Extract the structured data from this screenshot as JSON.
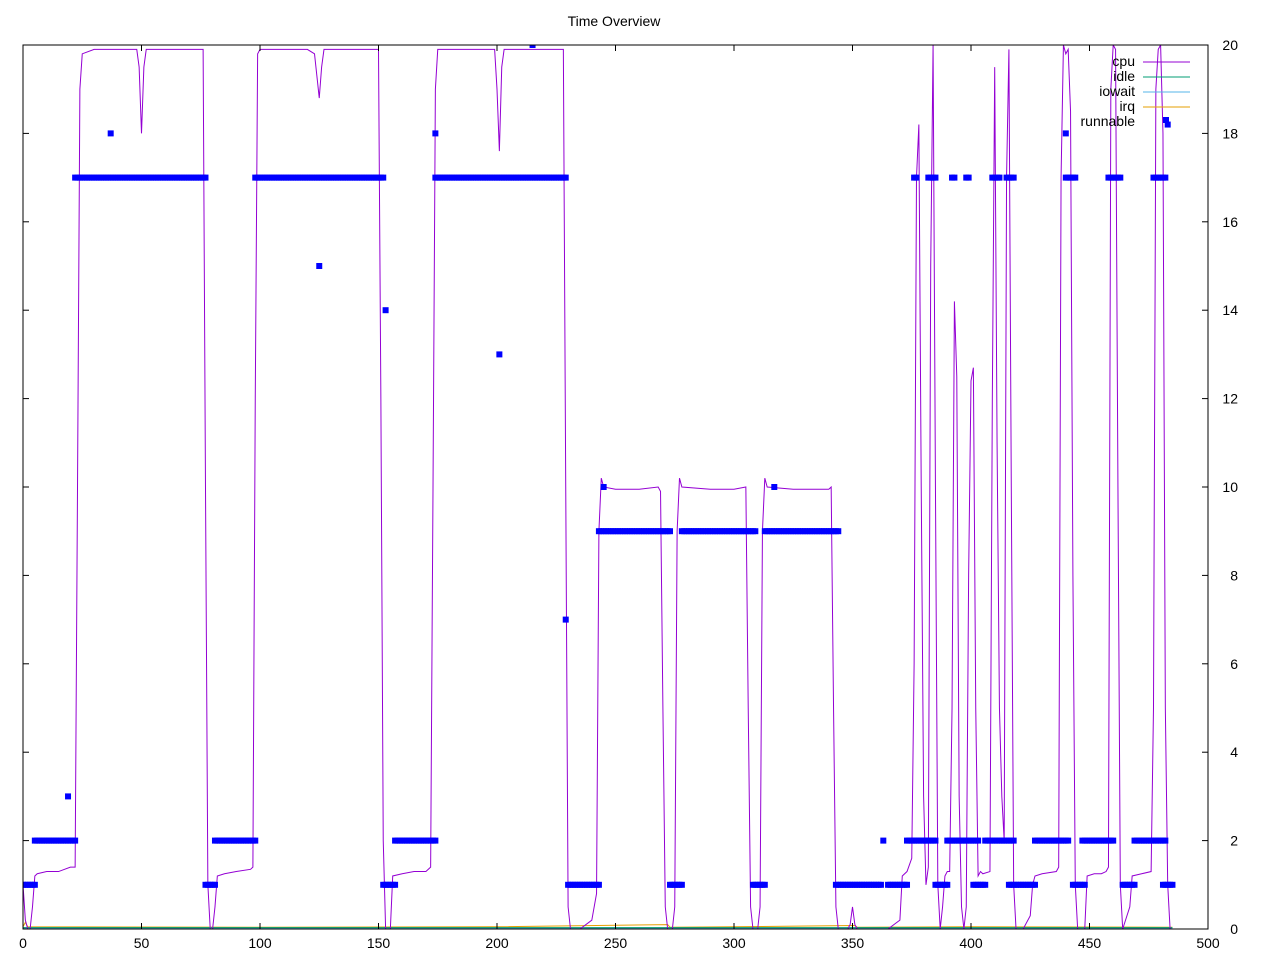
{
  "chart_data": {
    "type": "line",
    "title": "Time Overview",
    "xlabel": "",
    "ylabel": "",
    "xlim": [
      0,
      500
    ],
    "ylim": [
      0,
      20
    ],
    "x_ticks": [
      0,
      50,
      100,
      150,
      200,
      250,
      300,
      350,
      400,
      450,
      500
    ],
    "y_ticks": [
      0,
      2,
      4,
      6,
      8,
      10,
      12,
      14,
      16,
      18,
      20
    ],
    "grid": false,
    "legend_position": "top-right",
    "legend": [
      {
        "name": "cpu",
        "color": "#9400d3",
        "style": "line"
      },
      {
        "name": "idle",
        "color": "#009e73",
        "style": "line"
      },
      {
        "name": "iowait",
        "color": "#56b4e9",
        "style": "line"
      },
      {
        "name": "irq",
        "color": "#e69f00",
        "style": "line"
      },
      {
        "name": "runnable",
        "color": "#0000ff",
        "style": "points"
      }
    ],
    "series": [
      {
        "name": "cpu",
        "color": "#9400d3",
        "points": [
          [
            0,
            1.0
          ],
          [
            1,
            0.2
          ],
          [
            2,
            0
          ],
          [
            3,
            0
          ],
          [
            4,
            0.5
          ],
          [
            5,
            1.2
          ],
          [
            6,
            1.25
          ],
          [
            10,
            1.3
          ],
          [
            15,
            1.3
          ],
          [
            20,
            1.4
          ],
          [
            22,
            1.4
          ],
          [
            23,
            10
          ],
          [
            24,
            19
          ],
          [
            25,
            19.8
          ],
          [
            30,
            19.9
          ],
          [
            40,
            19.9
          ],
          [
            48,
            19.9
          ],
          [
            49,
            19.5
          ],
          [
            50,
            18
          ],
          [
            51,
            19.5
          ],
          [
            52,
            19.9
          ],
          [
            60,
            19.9
          ],
          [
            70,
            19.9
          ],
          [
            76,
            19.9
          ],
          [
            77,
            10
          ],
          [
            78,
            1
          ],
          [
            79,
            0
          ],
          [
            80,
            0
          ],
          [
            81,
            0.5
          ],
          [
            82,
            1.2
          ],
          [
            85,
            1.25
          ],
          [
            90,
            1.3
          ],
          [
            96,
            1.35
          ],
          [
            97,
            1.4
          ],
          [
            98,
            12
          ],
          [
            99,
            19.8
          ],
          [
            100,
            19.9
          ],
          [
            110,
            19.9
          ],
          [
            120,
            19.9
          ],
          [
            123,
            19.8
          ],
          [
            124,
            19.3
          ],
          [
            125,
            18.8
          ],
          [
            126,
            19.5
          ],
          [
            127,
            19.9
          ],
          [
            140,
            19.9
          ],
          [
            150,
            19.9
          ],
          [
            151,
            12
          ],
          [
            152,
            2
          ],
          [
            153,
            0
          ],
          [
            155,
            0
          ],
          [
            156,
            1.2
          ],
          [
            160,
            1.25
          ],
          [
            165,
            1.3
          ],
          [
            170,
            1.3
          ],
          [
            172,
            1.4
          ],
          [
            173,
            10
          ],
          [
            174,
            19
          ],
          [
            175,
            19.9
          ],
          [
            190,
            19.9
          ],
          [
            199,
            19.9
          ],
          [
            200,
            19
          ],
          [
            201,
            17.6
          ],
          [
            202,
            19.5
          ],
          [
            203,
            19.9
          ],
          [
            215,
            19.9
          ],
          [
            228,
            19.9
          ],
          [
            229,
            10
          ],
          [
            230,
            0.5
          ],
          [
            231,
            0
          ],
          [
            235,
            0
          ],
          [
            240,
            0.2
          ],
          [
            242,
            0.8
          ],
          [
            243,
            9
          ],
          [
            244,
            10.2
          ],
          [
            245,
            10
          ],
          [
            250,
            9.95
          ],
          [
            260,
            9.95
          ],
          [
            268,
            10
          ],
          [
            269,
            9.9
          ],
          [
            270,
            5
          ],
          [
            271,
            0.5
          ],
          [
            272,
            0
          ],
          [
            274,
            0
          ],
          [
            275,
            0.5
          ],
          [
            276,
            9
          ],
          [
            277,
            10.2
          ],
          [
            278,
            10
          ],
          [
            290,
            9.95
          ],
          [
            300,
            9.95
          ],
          [
            305,
            10
          ],
          [
            306,
            5
          ],
          [
            307,
            0.5
          ],
          [
            308,
            0
          ],
          [
            310,
            0
          ],
          [
            311,
            0.5
          ],
          [
            312,
            9
          ],
          [
            313,
            10.2
          ],
          [
            314,
            10
          ],
          [
            325,
            9.95
          ],
          [
            340,
            9.95
          ],
          [
            341,
            10
          ],
          [
            342,
            5
          ],
          [
            343,
            0.5
          ],
          [
            344,
            0
          ],
          [
            348,
            0
          ],
          [
            349,
            0.1
          ],
          [
            350,
            0.5
          ],
          [
            351,
            0.1
          ],
          [
            352,
            0
          ],
          [
            360,
            0
          ],
          [
            365,
            0
          ],
          [
            370,
            0.2
          ],
          [
            371,
            1.2
          ],
          [
            373,
            1.3
          ],
          [
            375,
            1.6
          ],
          [
            376,
            6
          ],
          [
            377,
            17
          ],
          [
            378,
            18.2
          ],
          [
            379,
            10
          ],
          [
            380,
            3
          ],
          [
            381,
            1.0
          ],
          [
            382,
            1.4
          ],
          [
            383,
            15
          ],
          [
            384,
            20
          ],
          [
            385,
            10
          ],
          [
            386,
            1
          ],
          [
            387,
            0
          ],
          [
            388,
            0.5
          ],
          [
            389,
            1.2
          ],
          [
            390,
            1.3
          ],
          [
            391,
            1.3
          ],
          [
            392,
            5
          ],
          [
            393,
            14.2
          ],
          [
            394,
            12.5
          ],
          [
            395,
            3
          ],
          [
            396,
            0.5
          ],
          [
            397,
            0
          ],
          [
            398,
            0.5
          ],
          [
            399,
            8
          ],
          [
            400,
            12.4
          ],
          [
            401,
            12.7
          ],
          [
            402,
            5
          ],
          [
            403,
            1.2
          ],
          [
            404,
            1.3
          ],
          [
            405,
            1.25
          ],
          [
            408,
            1.3
          ],
          [
            409,
            12
          ],
          [
            410,
            19.5
          ],
          [
            411,
            11
          ],
          [
            412,
            5
          ],
          [
            413,
            3
          ],
          [
            414,
            2
          ],
          [
            415,
            17
          ],
          [
            416,
            19.9
          ],
          [
            417,
            10
          ],
          [
            418,
            1
          ],
          [
            419,
            0
          ],
          [
            422,
            0
          ],
          [
            425,
            0.3
          ],
          [
            426,
            1
          ],
          [
            427,
            1.2
          ],
          [
            430,
            1.25
          ],
          [
            436,
            1.3
          ],
          [
            437,
            1.4
          ],
          [
            438,
            17
          ],
          [
            439,
            20
          ],
          [
            440,
            19.8
          ],
          [
            441,
            19.9
          ],
          [
            442,
            18.5
          ],
          [
            443,
            8
          ],
          [
            444,
            1
          ],
          [
            445,
            0
          ],
          [
            448,
            0
          ],
          [
            449,
            1.2
          ],
          [
            452,
            1.25
          ],
          [
            455,
            1.25
          ],
          [
            457,
            1.3
          ],
          [
            458,
            1.4
          ],
          [
            459,
            19
          ],
          [
            460,
            20
          ],
          [
            461,
            19.9
          ],
          [
            462,
            10
          ],
          [
            463,
            1
          ],
          [
            464,
            0
          ],
          [
            467,
            0.5
          ],
          [
            468,
            1.2
          ],
          [
            472,
            1.25
          ],
          [
            476,
            1.3
          ],
          [
            477,
            5
          ],
          [
            478,
            19
          ],
          [
            479,
            19.9
          ],
          [
            480,
            20
          ],
          [
            481,
            18
          ],
          [
            482,
            5
          ],
          [
            483,
            1
          ],
          [
            484,
            0
          ],
          [
            485,
            0
          ]
        ]
      },
      {
        "name": "idle",
        "color": "#009e73",
        "points": [
          [
            0,
            0.03
          ],
          [
            485,
            0.03
          ]
        ]
      },
      {
        "name": "iowait",
        "color": "#56b4e9",
        "points": [
          [
            0,
            0.01
          ],
          [
            485,
            0.01
          ]
        ]
      },
      {
        "name": "irq",
        "color": "#e69f00",
        "points": [
          [
            0,
            0.05
          ],
          [
            1,
            0.15
          ],
          [
            2,
            0.05
          ],
          [
            100,
            0.04
          ],
          [
            200,
            0.05
          ],
          [
            272,
            0.1
          ],
          [
            273,
            0.04
          ],
          [
            300,
            0.05
          ],
          [
            351,
            0.08
          ],
          [
            352,
            0.04
          ],
          [
            400,
            0.05
          ],
          [
            485,
            0.04
          ]
        ]
      },
      {
        "name": "runnable",
        "color": "#0000ff",
        "style": "points",
        "runs": [
          {
            "from": 0,
            "to": 5,
            "y": 1
          },
          {
            "from": 5,
            "to": 22,
            "y": 2
          },
          {
            "from": 22,
            "to": 77,
            "y": 17
          },
          {
            "from": 77,
            "to": 81,
            "y": 1
          },
          {
            "from": 81,
            "to": 98,
            "y": 2
          },
          {
            "from": 98,
            "to": 152,
            "y": 17
          },
          {
            "from": 152,
            "to": 157,
            "y": 1
          },
          {
            "from": 157,
            "to": 174,
            "y": 2
          },
          {
            "from": 174,
            "to": 229,
            "y": 17
          },
          {
            "from": 230,
            "to": 243,
            "y": 1
          },
          {
            "from": 243,
            "to": 273,
            "y": 9
          },
          {
            "from": 273,
            "to": 278,
            "y": 1
          },
          {
            "from": 278,
            "to": 309,
            "y": 9
          },
          {
            "from": 308,
            "to": 313,
            "y": 1
          },
          {
            "from": 313,
            "to": 344,
            "y": 9
          },
          {
            "from": 343,
            "to": 362,
            "y": 1
          },
          {
            "from": 365,
            "to": 373,
            "y": 1
          },
          {
            "from": 373,
            "to": 385,
            "y": 2
          },
          {
            "from": 385,
            "to": 390,
            "y": 1
          },
          {
            "from": 390,
            "to": 403,
            "y": 2
          },
          {
            "from": 401,
            "to": 406,
            "y": 1
          },
          {
            "from": 406,
            "to": 418,
            "y": 2
          },
          {
            "from": 416,
            "to": 427,
            "y": 1
          },
          {
            "from": 427,
            "to": 441,
            "y": 2
          },
          {
            "from": 443,
            "to": 448,
            "y": 1
          },
          {
            "from": 447,
            "to": 460,
            "y": 2
          },
          {
            "from": 464,
            "to": 469,
            "y": 1
          },
          {
            "from": 469,
            "to": 482,
            "y": 2
          },
          {
            "from": 481,
            "to": 485,
            "y": 1
          },
          {
            "from": 376,
            "to": 377,
            "y": 17
          },
          {
            "from": 382,
            "to": 385,
            "y": 17
          },
          {
            "from": 392,
            "to": 393,
            "y": 17
          },
          {
            "from": 398,
            "to": 399,
            "y": 17
          },
          {
            "from": 409,
            "to": 412,
            "y": 17
          },
          {
            "from": 415,
            "to": 418,
            "y": 17
          },
          {
            "from": 440,
            "to": 444,
            "y": 17
          },
          {
            "from": 458,
            "to": 463,
            "y": 17
          },
          {
            "from": 477,
            "to": 482,
            "y": 17
          }
        ],
        "points": [
          [
            19,
            3
          ],
          [
            37,
            18
          ],
          [
            125,
            15
          ],
          [
            153,
            14
          ],
          [
            174,
            18
          ],
          [
            201,
            13
          ],
          [
            215,
            20
          ],
          [
            229,
            7
          ],
          [
            245,
            10
          ],
          [
            317,
            10
          ],
          [
            363,
            2
          ],
          [
            440,
            18
          ],
          [
            483,
            18.2
          ]
        ]
      }
    ]
  }
}
